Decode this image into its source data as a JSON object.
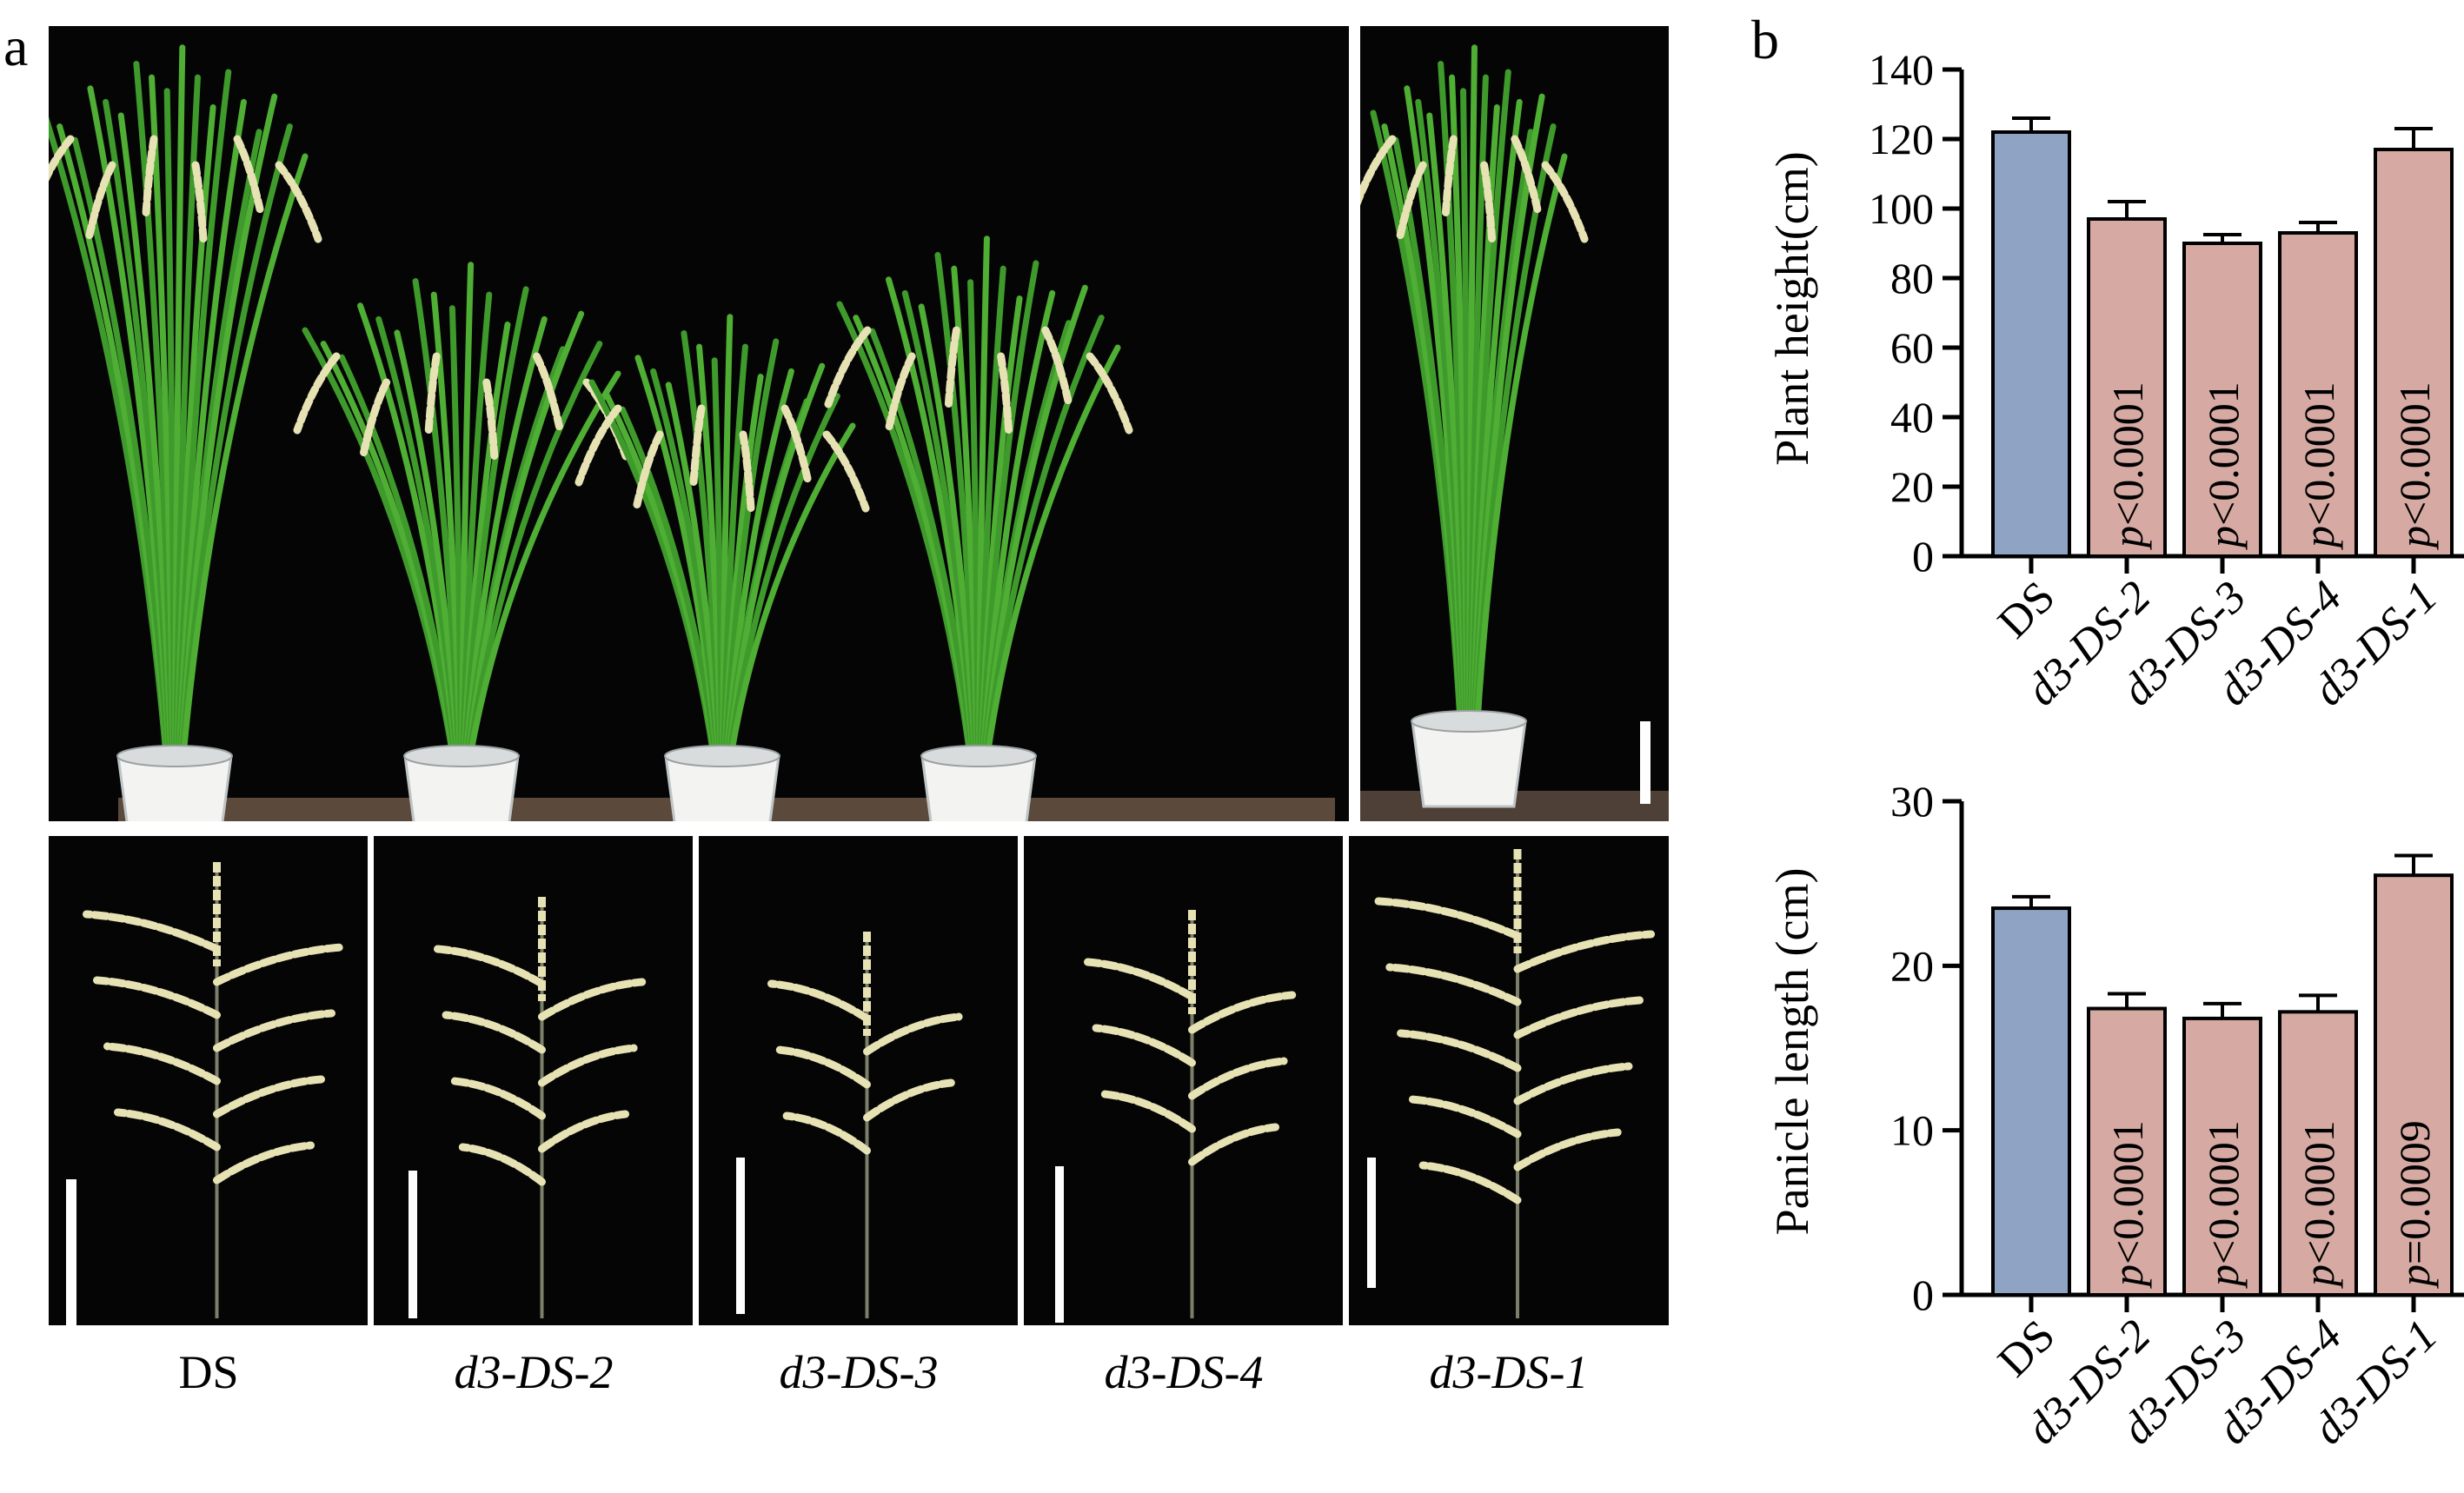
{
  "panel_a_label": "a",
  "panel_b_label": "b",
  "genotypes": [
    {
      "label": "DS",
      "italic": false
    },
    {
      "label": "d3-DS-2",
      "italic": true
    },
    {
      "label": "d3-DS-3",
      "italic": true
    },
    {
      "label": "d3-DS-4",
      "italic": true
    },
    {
      "label": "d3-DS-1",
      "italic": true
    }
  ],
  "colors": {
    "control_bar": "#8fa3c4",
    "mutant_bar": "#d6aaa3",
    "photo_background": "#050505",
    "leaf_green": "#3f9a2c",
    "panicle_cream": "#e6e2b4"
  },
  "chart_data": [
    {
      "type": "bar",
      "categories": [
        "DS",
        "d3-DS-2",
        "d3-DS-3",
        "d3-DS-4",
        "d3-DS-1"
      ],
      "values": [
        122,
        97,
        90,
        93,
        117
      ],
      "errors": [
        4,
        5,
        2.5,
        3,
        6
      ],
      "annotations": [
        "",
        "p<0.0001",
        "p<0.0001",
        "p<0.0001",
        "p<0.0001"
      ],
      "ylabel": "Plant height(cm)",
      "ylim": [
        0,
        140
      ],
      "yticks": [
        0,
        20,
        40,
        60,
        80,
        100,
        120,
        140
      ]
    },
    {
      "type": "bar",
      "categories": [
        "DS",
        "d3-DS-2",
        "d3-DS-3",
        "d3-DS-4",
        "d3-DS-1"
      ],
      "values": [
        23.5,
        17.4,
        16.8,
        17.2,
        25.5
      ],
      "errors": [
        0.7,
        0.9,
        0.9,
        1.0,
        1.2
      ],
      "annotations": [
        "",
        "p<0.0001",
        "p<0.0001",
        "p<0.0001",
        "p=0.0009"
      ],
      "ylabel": "Panicle length (cm)",
      "ylim": [
        0,
        30
      ],
      "yticks": [
        0,
        10,
        20,
        30
      ]
    }
  ]
}
